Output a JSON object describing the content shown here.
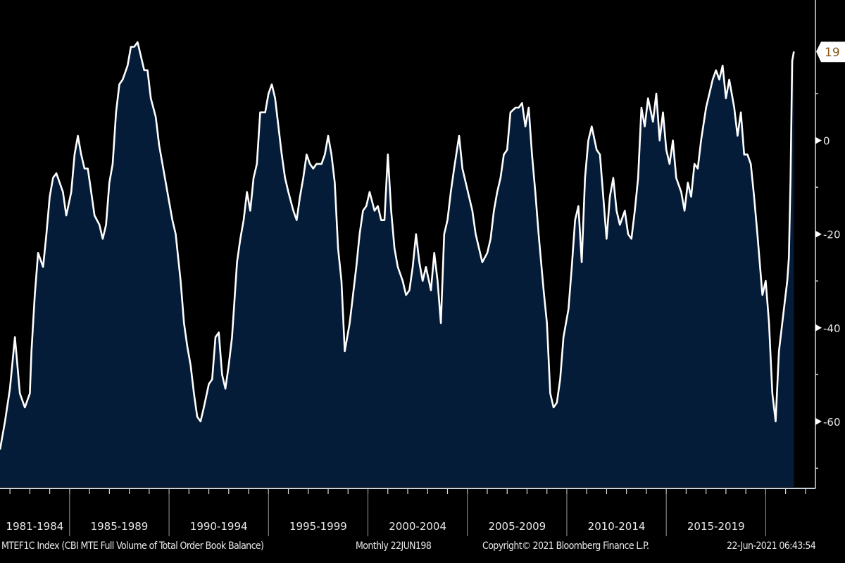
{
  "chart_data": {
    "type": "area",
    "title": "",
    "xlabel": "",
    "ylabel": "",
    "ylim": [
      -74,
      30
    ],
    "xlim": [
      "1981-07",
      "2022-07"
    ],
    "y_ticks": [
      -60,
      -40,
      -20,
      0
    ],
    "y_minor_ticks": [
      -70,
      -50,
      -30,
      -10,
      10
    ],
    "x_period_labels": [
      "1981-1984",
      "1985-1989",
      "1990-1994",
      "1995-1999",
      "2000-2004",
      "2005-2009",
      "2010-2014",
      "2015-2019"
    ],
    "x_period_boundaries": [
      "1985-01",
      "1990-01",
      "1995-01",
      "2000-01",
      "2005-01",
      "2010-01",
      "2015-01",
      "2020-01"
    ],
    "last_value_label": "19",
    "grid": false,
    "legend": "none",
    "colors": {
      "background": "#000000",
      "area_fill": "#051c38",
      "line": "#ffffff",
      "axis": "#d8d8d8"
    },
    "series": [
      {
        "points": [
          [
            "1981-07",
            -66
          ],
          [
            "1981-10",
            -60
          ],
          [
            "1982-01",
            -53
          ],
          [
            "1982-04",
            -42
          ],
          [
            "1982-07",
            -54
          ],
          [
            "1982-10",
            -57
          ],
          [
            "1983-01",
            -54
          ],
          [
            "1983-02",
            -45
          ],
          [
            "1983-04",
            -33
          ],
          [
            "1983-06",
            -24
          ],
          [
            "1983-09",
            -27
          ],
          [
            "1983-11",
            -20
          ],
          [
            "1984-01",
            -12
          ],
          [
            "1984-03",
            -8
          ],
          [
            "1984-05",
            -7
          ],
          [
            "1984-07",
            -9
          ],
          [
            "1984-09",
            -11
          ],
          [
            "1984-11",
            -16
          ],
          [
            "1985-02",
            -11
          ],
          [
            "1985-04",
            -3
          ],
          [
            "1985-06",
            1
          ],
          [
            "1985-08",
            -3
          ],
          [
            "1985-10",
            -6
          ],
          [
            "1985-12",
            -6
          ],
          [
            "1986-02",
            -11
          ],
          [
            "1986-04",
            -16
          ],
          [
            "1986-07",
            -18
          ],
          [
            "1986-09",
            -21
          ],
          [
            "1986-11",
            -18
          ],
          [
            "1987-01",
            -9
          ],
          [
            "1987-03",
            -5
          ],
          [
            "1987-05",
            6
          ],
          [
            "1987-07",
            12
          ],
          [
            "1987-09",
            13
          ],
          [
            "1987-12",
            16
          ],
          [
            "1988-02",
            20
          ],
          [
            "1988-04",
            20
          ],
          [
            "1988-06",
            21
          ],
          [
            "1988-08",
            18
          ],
          [
            "1988-10",
            15
          ],
          [
            "1988-12",
            15
          ],
          [
            "1989-02",
            9
          ],
          [
            "1989-05",
            5
          ],
          [
            "1989-07",
            -1
          ],
          [
            "1989-09",
            -5
          ],
          [
            "1989-11",
            -9
          ],
          [
            "1990-01",
            -13
          ],
          [
            "1990-03",
            -17
          ],
          [
            "1990-05",
            -20
          ],
          [
            "1990-08",
            -30
          ],
          [
            "1990-10",
            -39
          ],
          [
            "1990-12",
            -44
          ],
          [
            "1991-02",
            -48
          ],
          [
            "1991-04",
            -54
          ],
          [
            "1991-06",
            -59
          ],
          [
            "1991-08",
            -60
          ],
          [
            "1991-10",
            -57
          ],
          [
            "1992-01",
            -52
          ],
          [
            "1992-03",
            -51
          ],
          [
            "1992-05",
            -42
          ],
          [
            "1992-07",
            -41
          ],
          [
            "1992-09",
            -50
          ],
          [
            "1992-11",
            -53
          ],
          [
            "1993-01",
            -48
          ],
          [
            "1993-03",
            -42
          ],
          [
            "1993-06",
            -26
          ],
          [
            "1993-08",
            -21
          ],
          [
            "1993-10",
            -17
          ],
          [
            "1993-12",
            -11
          ],
          [
            "1994-02",
            -15
          ],
          [
            "1994-04",
            -8
          ],
          [
            "1994-06",
            -5
          ],
          [
            "1994-08",
            6
          ],
          [
            "1994-11",
            6
          ],
          [
            "1995-01",
            10
          ],
          [
            "1995-03",
            12
          ],
          [
            "1995-05",
            9
          ],
          [
            "1995-07",
            3
          ],
          [
            "1995-09",
            -3
          ],
          [
            "1995-11",
            -8
          ],
          [
            "1996-01",
            -11
          ],
          [
            "1996-04",
            -15
          ],
          [
            "1996-06",
            -17
          ],
          [
            "1996-08",
            -12
          ],
          [
            "1996-10",
            -8
          ],
          [
            "1996-12",
            -3
          ],
          [
            "1997-02",
            -5
          ],
          [
            "1997-04",
            -6
          ],
          [
            "1997-06",
            -5
          ],
          [
            "1997-09",
            -5
          ],
          [
            "1997-11",
            -3
          ],
          [
            "1998-01",
            1
          ],
          [
            "1998-03",
            -3
          ],
          [
            "1998-05",
            -9
          ],
          [
            "1998-07",
            -23
          ],
          [
            "1998-09",
            -30
          ],
          [
            "1998-11",
            -45
          ],
          [
            "1999-02",
            -39
          ],
          [
            "1999-04",
            -33
          ],
          [
            "1999-06",
            -27
          ],
          [
            "1999-08",
            -20
          ],
          [
            "1999-10",
            -15
          ],
          [
            "1999-12",
            -14
          ],
          [
            "2000-02",
            -11
          ],
          [
            "2000-05",
            -15
          ],
          [
            "2000-07",
            -14
          ],
          [
            "2000-09",
            -17
          ],
          [
            "2000-11",
            -17
          ],
          [
            "2001-01",
            -3
          ],
          [
            "2001-03",
            -15
          ],
          [
            "2001-05",
            -23
          ],
          [
            "2001-07",
            -27
          ],
          [
            "2001-10",
            -30
          ],
          [
            "2001-12",
            -33
          ],
          [
            "2002-02",
            -32
          ],
          [
            "2002-04",
            -27
          ],
          [
            "2002-06",
            -20
          ],
          [
            "2002-08",
            -26
          ],
          [
            "2002-10",
            -30
          ],
          [
            "2002-12",
            -27
          ],
          [
            "2003-03",
            -32
          ],
          [
            "2003-05",
            -24
          ],
          [
            "2003-07",
            -30
          ],
          [
            "2003-09",
            -39
          ],
          [
            "2003-11",
            -20
          ],
          [
            "2004-01",
            -17
          ],
          [
            "2004-03",
            -11
          ],
          [
            "2004-05",
            -6
          ],
          [
            "2004-08",
            1
          ],
          [
            "2004-10",
            -6
          ],
          [
            "2004-12",
            -9
          ],
          [
            "2005-02",
            -12
          ],
          [
            "2005-04",
            -15
          ],
          [
            "2005-06",
            -20
          ],
          [
            "2005-08",
            -23
          ],
          [
            "2005-10",
            -26
          ],
          [
            "2006-01",
            -24
          ],
          [
            "2006-03",
            -21
          ],
          [
            "2006-05",
            -15
          ],
          [
            "2006-07",
            -11
          ],
          [
            "2006-09",
            -8
          ],
          [
            "2006-11",
            -3
          ],
          [
            "2007-01",
            -2
          ],
          [
            "2007-03",
            6
          ],
          [
            "2007-06",
            7
          ],
          [
            "2007-08",
            7
          ],
          [
            "2007-10",
            8
          ],
          [
            "2007-12",
            3
          ],
          [
            "2008-02",
            7
          ],
          [
            "2008-04",
            -3
          ],
          [
            "2008-06",
            -11
          ],
          [
            "2008-08",
            -20
          ],
          [
            "2008-11",
            -32
          ],
          [
            "2009-01",
            -39
          ],
          [
            "2009-03",
            -54
          ],
          [
            "2009-05",
            -57
          ],
          [
            "2009-07",
            -56
          ],
          [
            "2009-09",
            -51
          ],
          [
            "2009-11",
            -42
          ],
          [
            "2010-02",
            -36
          ],
          [
            "2010-04",
            -27
          ],
          [
            "2010-06",
            -17
          ],
          [
            "2010-08",
            -14
          ],
          [
            "2010-10",
            -26
          ],
          [
            "2010-12",
            -8
          ],
          [
            "2011-02",
            0
          ],
          [
            "2011-04",
            3
          ],
          [
            "2011-07",
            -2
          ],
          [
            "2011-09",
            -3
          ],
          [
            "2011-11",
            -12
          ],
          [
            "2012-01",
            -21
          ],
          [
            "2012-03",
            -12
          ],
          [
            "2012-05",
            -8
          ],
          [
            "2012-07",
            -15
          ],
          [
            "2012-09",
            -18
          ],
          [
            "2012-12",
            -15
          ],
          [
            "2013-02",
            -20
          ],
          [
            "2013-04",
            -21
          ],
          [
            "2013-06",
            -15
          ],
          [
            "2013-08",
            -8
          ],
          [
            "2013-10",
            7
          ],
          [
            "2013-12",
            3
          ],
          [
            "2014-02",
            9
          ],
          [
            "2014-05",
            4
          ],
          [
            "2014-07",
            10
          ],
          [
            "2014-09",
            0
          ],
          [
            "2014-11",
            6
          ],
          [
            "2015-01",
            -2
          ],
          [
            "2015-03",
            -5
          ],
          [
            "2015-05",
            0
          ],
          [
            "2015-07",
            -8
          ],
          [
            "2015-10",
            -11
          ],
          [
            "2015-12",
            -15
          ],
          [
            "2016-02",
            -9
          ],
          [
            "2016-04",
            -12
          ],
          [
            "2016-06",
            -5
          ],
          [
            "2016-08",
            -6
          ],
          [
            "2016-10",
            0
          ],
          [
            "2017-01",
            7
          ],
          [
            "2017-03",
            10
          ],
          [
            "2017-05",
            13
          ],
          [
            "2017-07",
            15
          ],
          [
            "2017-09",
            13
          ],
          [
            "2017-11",
            16
          ],
          [
            "2018-01",
            9
          ],
          [
            "2018-03",
            13
          ],
          [
            "2018-06",
            7
          ],
          [
            "2018-08",
            1
          ],
          [
            "2018-10",
            6
          ],
          [
            "2018-12",
            -3
          ],
          [
            "2019-02",
            -3
          ],
          [
            "2019-04",
            -5
          ],
          [
            "2019-06",
            -12
          ],
          [
            "2019-08",
            -20
          ],
          [
            "2019-11",
            -33
          ],
          [
            "2020-01",
            -30
          ],
          [
            "2020-03",
            -39
          ],
          [
            "2020-05",
            -54
          ],
          [
            "2020-07",
            -60
          ],
          [
            "2020-09",
            -45
          ],
          [
            "2020-11",
            -39
          ],
          [
            "2021-01",
            -33
          ],
          [
            "2021-02",
            -30
          ],
          [
            "2021-03",
            -25
          ],
          [
            "2021-04",
            -8
          ],
          [
            "2021-05",
            17
          ],
          [
            "2021-06",
            19
          ]
        ]
      }
    ]
  },
  "footer": {
    "ticker": "MTEF1C Index (CBI MTE Full Volume of Total Order Book Balance)",
    "frequency": "Monthly 22JUN198",
    "copyright": "Copyright© 2021 Bloomberg Finance L.P.",
    "timestamp": "22-Jun-2021 06:43:54"
  }
}
